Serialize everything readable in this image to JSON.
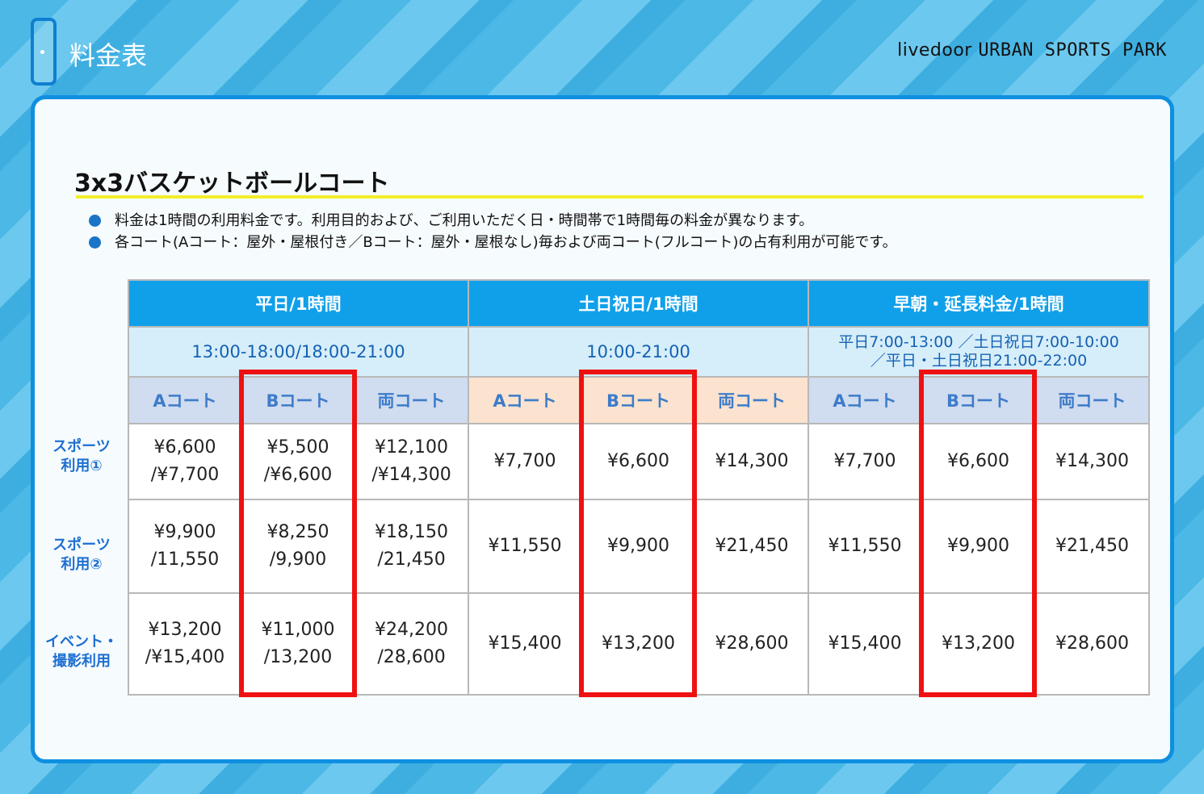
{
  "header": {
    "title": "料金表",
    "brand_part1": "livedoor",
    "brand_part2": "URBAN SPORTS PARK"
  },
  "section": {
    "title": "3x3バスケットボールコート",
    "notes": [
      "料金は1時間の利用料金です。利用目的および、ご利用いただく日・時間帯で1時間毎の料金が異なります。",
      "各コート(Aコート：屋外・屋根付き／Bコート：屋外・屋根なし)毎および両コート(フルコート)の占有利用が可能です。"
    ]
  },
  "table": {
    "groups": [
      "平日/1時間",
      "土日祝日/1時間",
      "早朝・延長料金/1時間"
    ],
    "times": [
      "13:00-18:00/18:00-21:00",
      "10:00-21:00",
      "平日7:00-13:00 ／土日祝日7:00-10:00",
      "／平日・土日祝日21:00-22:00"
    ],
    "courts": [
      "Aコート",
      "Bコート",
      "両コート"
    ],
    "row_labels": [
      [
        "スポーツ",
        "利用①"
      ],
      [
        "スポーツ",
        "利用②"
      ],
      [
        "イベント・",
        "撮影利用"
      ]
    ],
    "rows": [
      [
        [
          "¥6,600",
          "/¥7,700"
        ],
        [
          "¥5,500",
          "/¥6,600"
        ],
        [
          "¥12,100",
          "/¥14,300"
        ],
        "¥7,700",
        "¥6,600",
        "¥14,300",
        "¥7,700",
        "¥6,600",
        "¥14,300"
      ],
      [
        [
          "¥9,900",
          "/11,550"
        ],
        [
          "¥8,250",
          "/9,900"
        ],
        [
          "¥18,150",
          "/21,450"
        ],
        "¥11,550",
        "¥9,900",
        "¥21,450",
        "¥11,550",
        "¥9,900",
        "¥21,450"
      ],
      [
        [
          "¥13,200",
          "/¥15,400"
        ],
        [
          "¥11,000",
          "/13,200"
        ],
        [
          "¥24,200",
          "/28,600"
        ],
        "¥15,400",
        "¥13,200",
        "¥28,600",
        "¥15,400",
        "¥13,200",
        "¥28,600"
      ]
    ]
  },
  "colors": {
    "accent": "#10a0ea",
    "highlight": "#ee1111",
    "underline": "#f2ee2a"
  }
}
